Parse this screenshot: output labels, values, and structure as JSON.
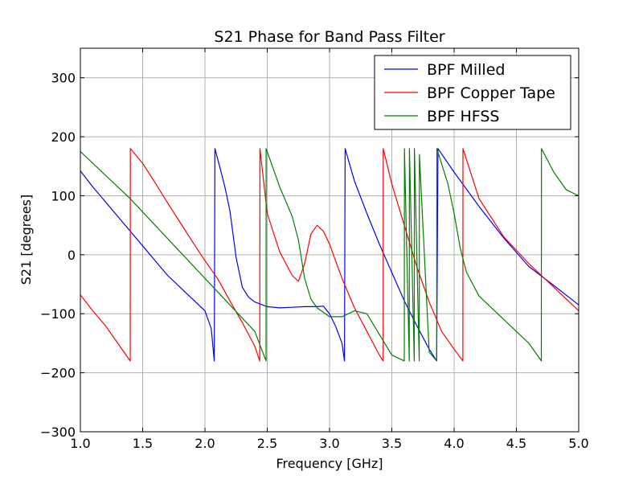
{
  "chart_data": {
    "type": "line",
    "title": "S21 Phase for Band Pass Filter",
    "xlabel": "Frequency [GHz]",
    "ylabel": "S21 [degrees]",
    "xlim": [
      1.0,
      5.0
    ],
    "ylim": [
      -300,
      350
    ],
    "x_ticks": [
      "1.0",
      "1.5",
      "2.0",
      "2.5",
      "3.0",
      "3.5",
      "4.0",
      "4.5",
      "5.0"
    ],
    "y_ticks": [
      "−300",
      "−200",
      "−100",
      "0",
      "100",
      "200",
      "300"
    ],
    "grid": true,
    "legend_position": "top-right",
    "series": [
      {
        "name": "BPF Milled",
        "color": "#0000ff",
        "x": [
          1.0,
          1.1,
          1.2,
          1.3,
          1.4,
          1.5,
          1.6,
          1.7,
          1.8,
          1.9,
          2.0,
          2.05,
          2.075,
          2.08,
          2.12,
          2.16,
          2.2,
          2.25,
          2.3,
          2.35,
          2.4,
          2.5,
          2.6,
          2.7,
          2.8,
          2.9,
          2.95,
          3.0,
          3.05,
          3.1,
          3.12,
          3.125,
          3.2,
          3.3,
          3.4,
          3.5,
          3.6,
          3.7,
          3.8,
          3.86,
          3.87,
          4.0,
          4.2,
          4.4,
          4.6,
          4.8,
          5.0
        ],
        "y": [
          142,
          115,
          90,
          65,
          40,
          15,
          -10,
          -35,
          -55,
          -75,
          -95,
          -125,
          -180,
          180,
          148,
          115,
          75,
          -5,
          -55,
          -72,
          -80,
          -88,
          -90,
          -89,
          -88,
          -88,
          -87,
          -100,
          -122,
          -150,
          -180,
          180,
          125,
          70,
          18,
          -30,
          -78,
          -120,
          -160,
          -180,
          180,
          140,
          82,
          28,
          -20,
          -52,
          -85
        ]
      },
      {
        "name": "BPF Copper Tape",
        "color": "#ff0000",
        "x": [
          1.0,
          1.1,
          1.2,
          1.3,
          1.4,
          1.401,
          1.5,
          1.6,
          1.7,
          1.8,
          1.9,
          2.0,
          2.1,
          2.2,
          2.3,
          2.4,
          2.44,
          2.441,
          2.5,
          2.6,
          2.7,
          2.75,
          2.8,
          2.85,
          2.9,
          2.95,
          3.0,
          3.1,
          3.2,
          3.3,
          3.4,
          3.43,
          3.431,
          3.5,
          3.6,
          3.7,
          3.8,
          3.9,
          4.0,
          4.07,
          4.071,
          4.2,
          4.4,
          4.6,
          4.8,
          5.0
        ],
        "y": [
          -68,
          -95,
          -120,
          -150,
          -180,
          180,
          155,
          122,
          88,
          55,
          22,
          -10,
          -40,
          -78,
          -115,
          -155,
          -180,
          180,
          70,
          5,
          -35,
          -45,
          -15,
          35,
          50,
          40,
          18,
          -40,
          -90,
          -130,
          -170,
          -180,
          180,
          120,
          50,
          -20,
          -80,
          -130,
          -160,
          -180,
          180,
          95,
          30,
          -15,
          -55,
          -95
        ]
      },
      {
        "name": "BPF HFSS",
        "color": "#008000",
        "x": [
          1.0,
          1.2,
          1.4,
          1.6,
          1.8,
          2.0,
          2.2,
          2.4,
          2.49,
          2.491,
          2.6,
          2.7,
          2.75,
          2.8,
          2.85,
          2.9,
          3.0,
          3.1,
          3.2,
          3.3,
          3.4,
          3.5,
          3.55,
          3.6,
          3.601,
          3.64,
          3.641,
          3.68,
          3.681,
          3.72,
          3.721,
          3.8,
          3.86,
          3.861,
          3.95,
          4.0,
          4.05,
          4.1,
          4.2,
          4.4,
          4.6,
          4.7,
          4.701,
          4.8,
          4.9,
          5.0
        ],
        "y": [
          175,
          135,
          95,
          50,
          5,
          -40,
          -85,
          -130,
          -180,
          180,
          115,
          65,
          25,
          -40,
          -75,
          -90,
          -105,
          -105,
          -95,
          -100,
          -135,
          -170,
          -175,
          -180,
          180,
          -180,
          180,
          -180,
          180,
          -180,
          170,
          -165,
          -180,
          180,
          120,
          70,
          10,
          -30,
          -70,
          -110,
          -150,
          -180,
          180,
          140,
          110,
          100
        ]
      }
    ]
  }
}
